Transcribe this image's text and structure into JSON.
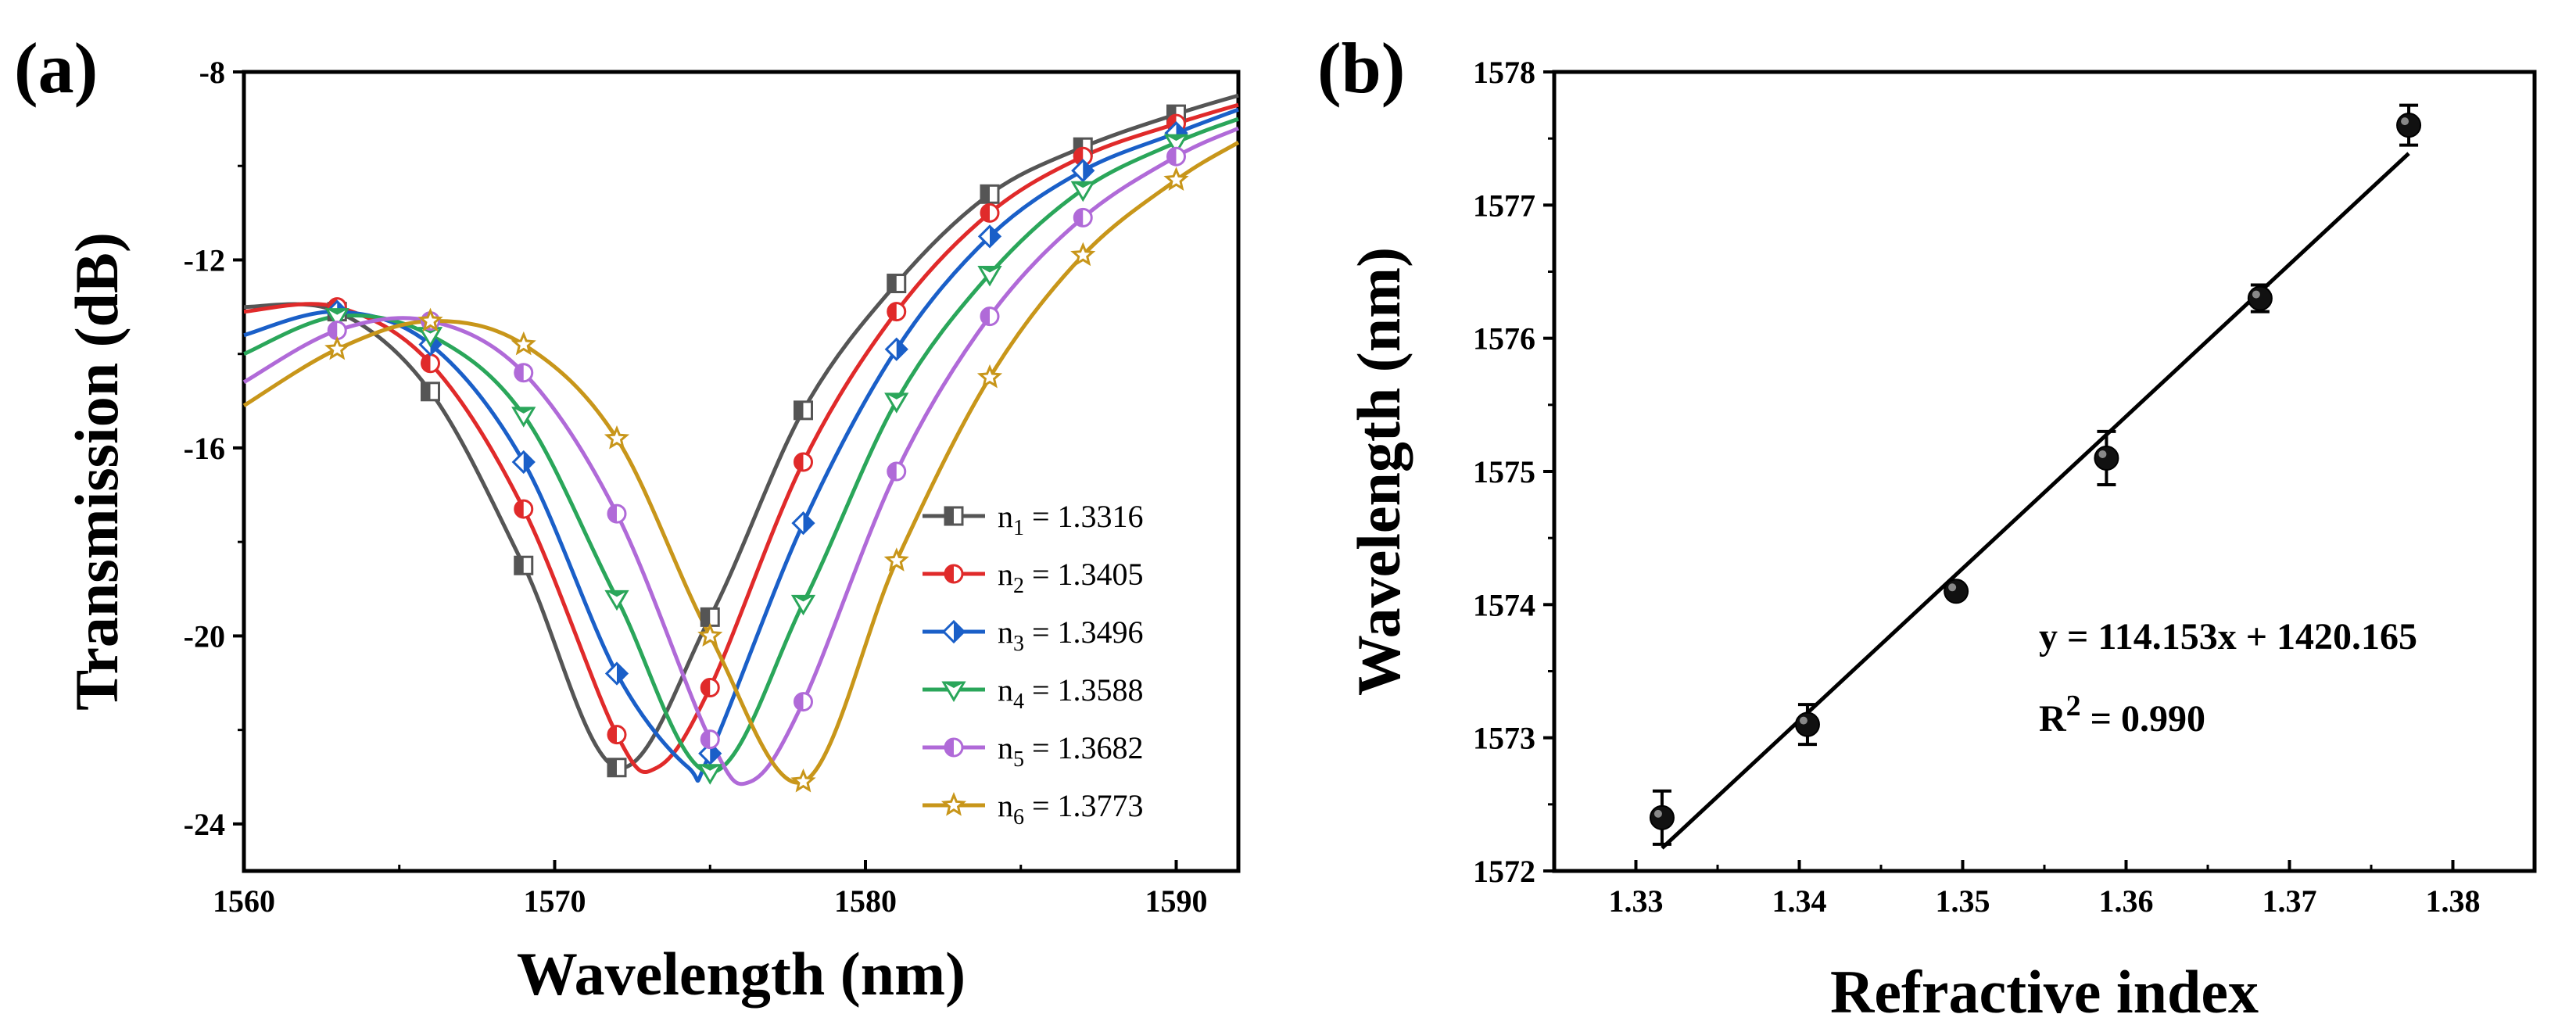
{
  "chart_data": [
    {
      "type": "line",
      "panel_label": "(a)",
      "xlabel": "Wavelength (nm)",
      "ylabel": "Transmission (dB)",
      "xlim": [
        1560,
        1592
      ],
      "ylim": [
        -25,
        -8
      ],
      "xticks": [
        1560,
        1570,
        1580,
        1590
      ],
      "yticks": [
        -8,
        -12,
        -16,
        -20,
        -24
      ],
      "legend_position": "bottom-right",
      "series": [
        {
          "name": "n",
          "sub": "1",
          "value": " = 1.3316",
          "color": "#555555",
          "marker": "square-half",
          "points": [
            [
              1560,
              -13.0
            ],
            [
              1563,
              -13.1
            ],
            [
              1566,
              -14.8
            ],
            [
              1569,
              -18.5
            ],
            [
              1572,
              -22.8
            ],
            [
              1575,
              -19.6
            ],
            [
              1578,
              -15.2
            ],
            [
              1581,
              -12.5
            ],
            [
              1584,
              -10.6
            ],
            [
              1587,
              -9.6
            ],
            [
              1590,
              -8.9
            ],
            [
              1592,
              -8.5
            ]
          ]
        },
        {
          "name": "n",
          "sub": "2",
          "value": " = 1.3405",
          "color": "#e02a2a",
          "marker": "circle-half",
          "points": [
            [
              1560,
              -13.1
            ],
            [
              1563,
              -13.0
            ],
            [
              1566,
              -14.2
            ],
            [
              1569,
              -17.3
            ],
            [
              1572,
              -22.1
            ],
            [
              1573.3,
              -22.8
            ],
            [
              1575,
              -21.1
            ],
            [
              1578,
              -16.3
            ],
            [
              1581,
              -13.1
            ],
            [
              1584,
              -11.0
            ],
            [
              1587,
              -9.8
            ],
            [
              1590,
              -9.1
            ],
            [
              1592,
              -8.7
            ]
          ]
        },
        {
          "name": "n",
          "sub": "3",
          "value": " = 1.3496",
          "color": "#1a5fc8",
          "marker": "diamond-half",
          "points": [
            [
              1560,
              -13.6
            ],
            [
              1563,
              -13.1
            ],
            [
              1566,
              -13.8
            ],
            [
              1569,
              -16.3
            ],
            [
              1572,
              -20.8
            ],
            [
              1574.3,
              -22.8
            ],
            [
              1575,
              -22.5
            ],
            [
              1578,
              -17.6
            ],
            [
              1581,
              -13.9
            ],
            [
              1584,
              -11.5
            ],
            [
              1587,
              -10.1
            ],
            [
              1590,
              -9.3
            ],
            [
              1592,
              -8.8
            ]
          ]
        },
        {
          "name": "n",
          "sub": "4",
          "value": " = 1.3588",
          "color": "#2aa65a",
          "marker": "triangle-down-half",
          "points": [
            [
              1560,
              -14.0
            ],
            [
              1563,
              -13.2
            ],
            [
              1566,
              -13.6
            ],
            [
              1569,
              -15.3
            ],
            [
              1572,
              -19.2
            ],
            [
              1575,
              -22.9
            ],
            [
              1578,
              -19.3
            ],
            [
              1581,
              -15.0
            ],
            [
              1584,
              -12.3
            ],
            [
              1587,
              -10.5
            ],
            [
              1590,
              -9.5
            ],
            [
              1592,
              -9.0
            ]
          ]
        },
        {
          "name": "n",
          "sub": "5",
          "value": " = 1.3682",
          "color": "#b06ad8",
          "marker": "circle-half",
          "points": [
            [
              1560,
              -14.6
            ],
            [
              1563,
              -13.5
            ],
            [
              1566,
              -13.3
            ],
            [
              1569,
              -14.4
            ],
            [
              1572,
              -17.4
            ],
            [
              1575,
              -22.2
            ],
            [
              1576.3,
              -23.1
            ],
            [
              1578,
              -21.4
            ],
            [
              1581,
              -16.5
            ],
            [
              1584,
              -13.2
            ],
            [
              1587,
              -11.1
            ],
            [
              1590,
              -9.8
            ],
            [
              1592,
              -9.2
            ]
          ]
        },
        {
          "name": "n",
          "sub": "6",
          "value": " = 1.3773",
          "color": "#c8961a",
          "marker": "star",
          "points": [
            [
              1560,
              -15.1
            ],
            [
              1563,
              -13.9
            ],
            [
              1566,
              -13.3
            ],
            [
              1569,
              -13.8
            ],
            [
              1572,
              -15.8
            ],
            [
              1575,
              -20.0
            ],
            [
              1578,
              -23.1
            ],
            [
              1581,
              -18.4
            ],
            [
              1584,
              -14.5
            ],
            [
              1587,
              -11.9
            ],
            [
              1590,
              -10.3
            ],
            [
              1592,
              -9.5
            ]
          ]
        }
      ]
    },
    {
      "type": "scatter",
      "panel_label": "(b)",
      "xlabel": "Refractive index",
      "ylabel": "Wavelength (nm)",
      "xlim": [
        1.325,
        1.385
      ],
      "ylim": [
        1572,
        1578
      ],
      "xticks": [
        "1.33",
        "1.34",
        "1.35",
        "1.36",
        "1.37",
        "1.38"
      ],
      "yticks": [
        "1572",
        "1573",
        "1574",
        "1575",
        "1576",
        "1577",
        "1578"
      ],
      "points": [
        {
          "x": 1.3316,
          "y": 1572.4,
          "err": 0.2
        },
        {
          "x": 1.3405,
          "y": 1573.1,
          "err": 0.15
        },
        {
          "x": 1.3496,
          "y": 1574.1,
          "err": 0.05
        },
        {
          "x": 1.3588,
          "y": 1575.1,
          "err": 0.2
        },
        {
          "x": 1.3682,
          "y": 1576.3,
          "err": 0.1
        },
        {
          "x": 1.3773,
          "y": 1577.6,
          "err": 0.15
        }
      ],
      "fit": {
        "slope": 114.153,
        "intercept": 1420.165,
        "x_range": [
          1.3316,
          1.3773
        ]
      },
      "equation": "y = 114.153x + 1420.165",
      "r2_prefix": "R",
      "r2_sup": "2",
      "r2_value": " = 0.990"
    }
  ]
}
